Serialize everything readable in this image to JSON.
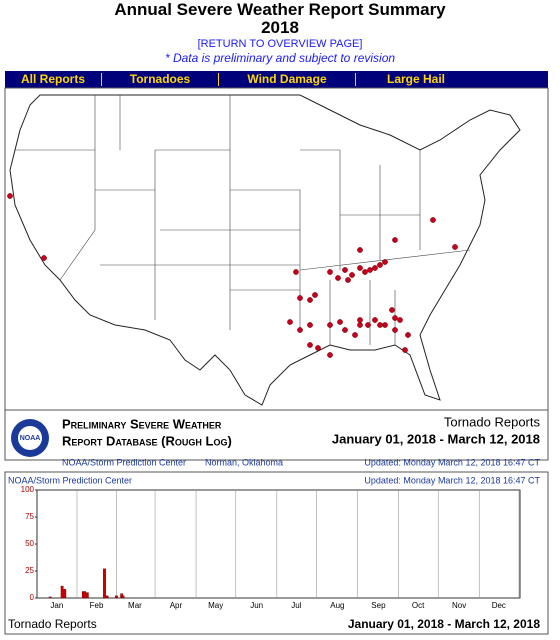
{
  "header": {
    "title": "Annual Severe Weather Report Summary",
    "year": "2018",
    "return_link": "[RETURN TO OVERVIEW PAGE]",
    "note": "* Data is preliminary and subject to revision"
  },
  "nav": [
    "All Reports",
    "Tornadoes",
    "Wind Damage",
    "Large Hail"
  ],
  "map": {
    "logo": "NOAA",
    "database_title_1": "Preliminary Severe Weather",
    "database_title_2": "Report Database (Rough Log)",
    "report_type": "Tornado Reports",
    "date_range": "January 01, 2018 - March 12, 2018",
    "source": "NOAA/Storm Prediction Center",
    "location": "Norman, Oklahoma",
    "updated": "Updated:  Monday March 12, 2018 16:47 CT"
  },
  "chart_data": {
    "type": "bar",
    "source": "NOAA/Storm Prediction Center",
    "updated": "Updated:  Monday March 12, 2018 16:47 CT",
    "footer_left": "Tornado Reports",
    "footer_right": "January 01, 2018 - March 12, 2018",
    "x": [
      10,
      19,
      21,
      35,
      36,
      38,
      51,
      53,
      60,
      64,
      65
    ],
    "values": [
      1,
      11,
      8,
      6,
      6,
      5,
      27,
      2,
      2,
      4,
      2
    ],
    "color": "#cc0000",
    "xlim": [
      0,
      365
    ],
    "xticks": [
      {
        "value": 15,
        "label": "Jan"
      },
      {
        "value": 45,
        "label": "Feb"
      },
      {
        "value": 74,
        "label": "Mar"
      },
      {
        "value": 105,
        "label": "Apr"
      },
      {
        "value": 135,
        "label": "May"
      },
      {
        "value": 166,
        "label": "Jun"
      },
      {
        "value": 196,
        "label": "Jul"
      },
      {
        "value": 227,
        "label": "Aug"
      },
      {
        "value": 258,
        "label": "Sep"
      },
      {
        "value": 288,
        "label": "Oct"
      },
      {
        "value": 319,
        "label": "Nov"
      },
      {
        "value": 349,
        "label": "Dec"
      }
    ],
    "ylim": [
      0,
      100
    ],
    "yticks": [
      0,
      25,
      50,
      75,
      100
    ],
    "grid": true
  }
}
